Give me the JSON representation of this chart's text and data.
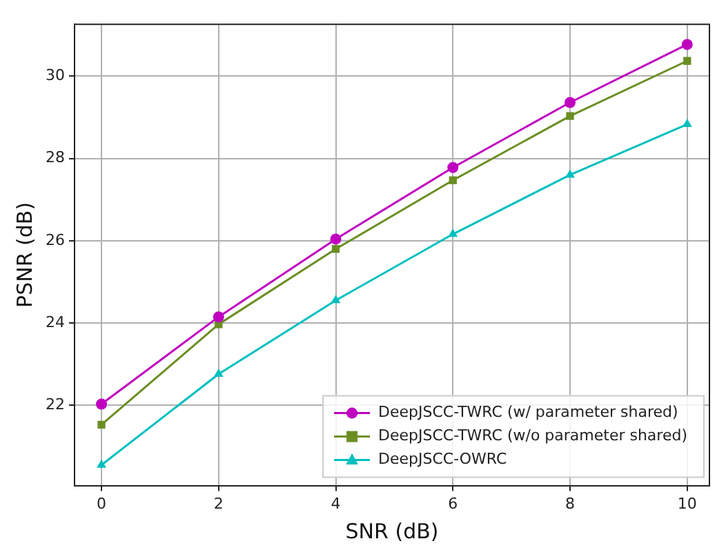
{
  "chart_data": {
    "type": "line",
    "xlabel": "SNR (dB)",
    "ylabel": "PSNR (dB)",
    "x": [
      0,
      2,
      4,
      6,
      8,
      10
    ],
    "series": [
      {
        "name": "DeepJSCC-TWRC (w/ parameter shared)",
        "color": "#bf00bf",
        "marker": "circle",
        "values": [
          22.03,
          24.15,
          26.04,
          27.78,
          29.36,
          30.77
        ]
      },
      {
        "name": "DeepJSCC-TWRC (w/o parameter shared)",
        "color": "#6b8e23",
        "marker": "square",
        "values": [
          21.53,
          23.97,
          25.8,
          27.47,
          29.03,
          30.37
        ]
      },
      {
        "name": "DeepJSCC-OWRC",
        "color": "#00bfbf",
        "marker": "triangle",
        "values": [
          20.55,
          22.76,
          24.55,
          26.16,
          27.6,
          28.83
        ]
      }
    ],
    "xlim": [
      -0.46,
      10.38
    ],
    "xticks": [
      0,
      2,
      4,
      6,
      8,
      10
    ],
    "ylim": [
      20.05,
      31.26
    ],
    "yticks": [
      22,
      24,
      26,
      28,
      30
    ],
    "grid": true,
    "legend": "bottom right",
    "line_style": "solid"
  }
}
